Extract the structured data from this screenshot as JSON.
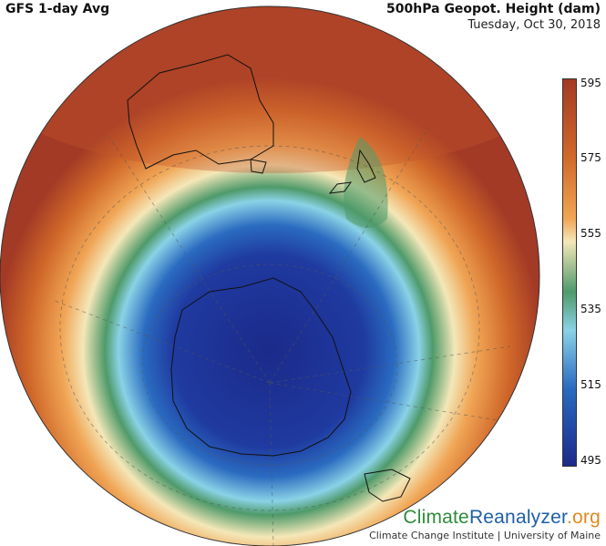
{
  "header": {
    "left_title": "GFS 1-day Avg",
    "right_title": "500hPa Geopot. Height (dam)",
    "date": "Tuesday, Oct 30, 2018"
  },
  "colorbar": {
    "ticks": [
      "595",
      "575",
      "555",
      "535",
      "515",
      "495"
    ],
    "colors": [
      "#a33a25",
      "#d0682a",
      "#f0a555",
      "#f4e7b8",
      "#4f9a6a",
      "#8ad2e6",
      "#2a6bc0",
      "#1b2a8a"
    ]
  },
  "brand": {
    "part1": "Climate",
    "part2": "Reanalyzer",
    "part3": ".org",
    "subtitle": "Climate Change Institute | University of Maine"
  }
}
